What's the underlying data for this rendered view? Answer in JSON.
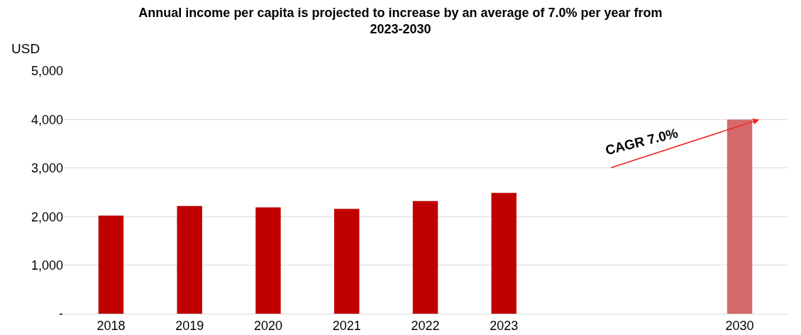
{
  "chart_data": {
    "type": "bar",
    "title": "Annual income per capita is projected to increase by an average of 7.0% per year from 2023-2030",
    "ylabel": "USD",
    "categories": [
      "2018",
      "2019",
      "2020",
      "2021",
      "2022",
      "2023",
      null,
      null,
      "2030"
    ],
    "values": [
      2020,
      2220,
      2190,
      2160,
      2320,
      2490,
      null,
      null,
      4000
    ],
    "colors": [
      "#c00000",
      "#c00000",
      "#c00000",
      "#c00000",
      "#c00000",
      "#c00000",
      "#c00000",
      "#c00000",
      "#d46a6a"
    ],
    "ylim": [
      0,
      5000
    ],
    "yticks": [
      {
        "value": 0,
        "label": "-"
      },
      {
        "value": 1000,
        "label": "1,000"
      },
      {
        "value": 2000,
        "label": "2,000"
      },
      {
        "value": 3000,
        "label": "3,000"
      },
      {
        "value": 4000,
        "label": "4,000"
      },
      {
        "value": 5000,
        "label": "5,000"
      }
    ],
    "grid": "y",
    "annotations": [
      "CAGR 7.0%"
    ]
  }
}
